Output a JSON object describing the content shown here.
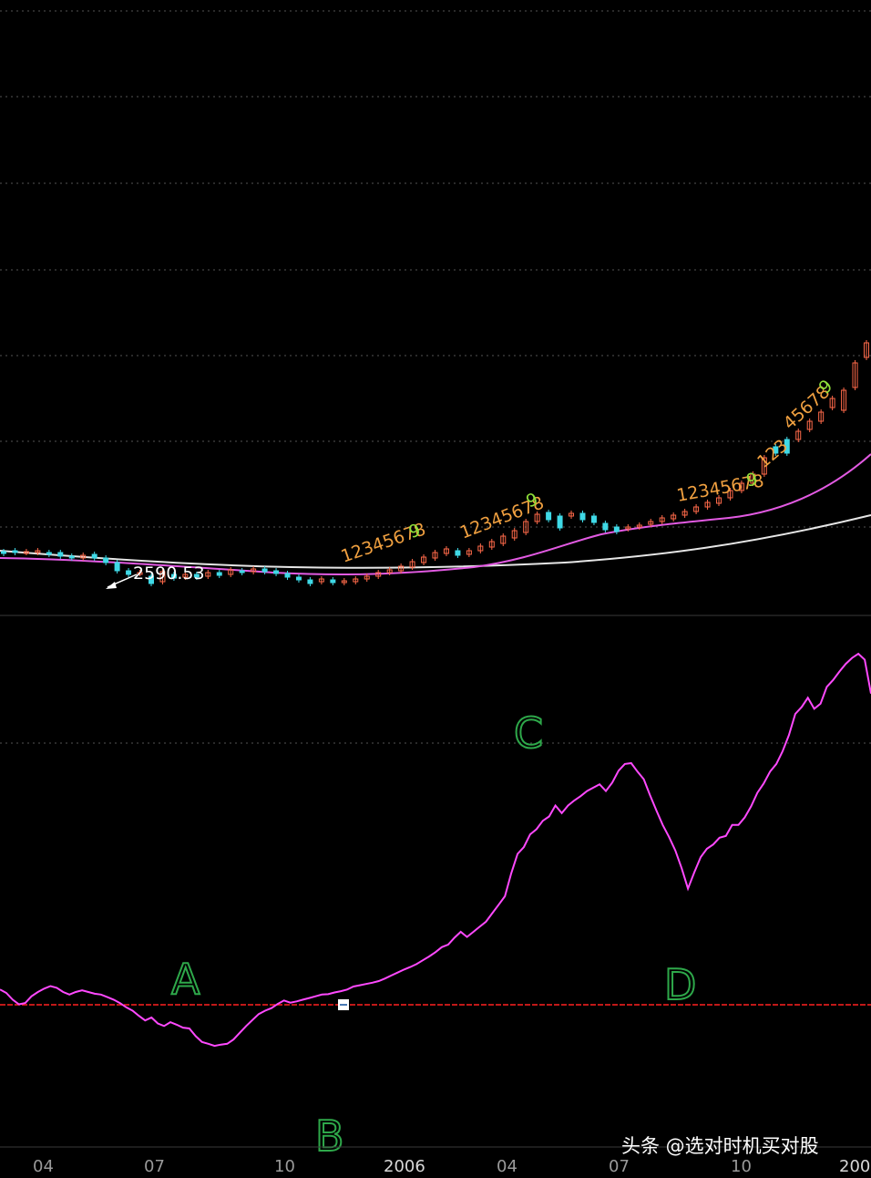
{
  "chart_data": {
    "type": "line",
    "x_ticks": [
      "04",
      "07",
      "10",
      "2006",
      "04",
      "07",
      "10",
      "200"
    ],
    "price_panel": {
      "annotation": "2590.53",
      "candles": [
        {
          "t": 0,
          "o": 605,
          "c": 607,
          "up": false
        },
        {
          "t": 1,
          "o": 604,
          "c": 606,
          "up": false
        },
        {
          "t": 2,
          "o": 606,
          "c": 605,
          "up": true
        },
        {
          "t": 3,
          "o": 604,
          "c": 606,
          "up": true
        },
        {
          "t": 4,
          "o": 606,
          "c": 608,
          "up": false
        },
        {
          "t": 5,
          "o": 606,
          "c": 610,
          "up": false
        },
        {
          "t": 6,
          "o": 610,
          "c": 612,
          "up": false
        },
        {
          "t": 7,
          "o": 612,
          "c": 609,
          "up": true
        },
        {
          "t": 8,
          "o": 608,
          "c": 612,
          "up": false
        },
        {
          "t": 9,
          "o": 612,
          "c": 617,
          "up": false
        },
        {
          "t": 10,
          "o": 617,
          "c": 626,
          "up": false
        },
        {
          "t": 11,
          "o": 626,
          "c": 630,
          "up": false
        },
        {
          "t": 12,
          "o": 629,
          "c": 628,
          "up": true
        },
        {
          "t": 13,
          "o": 632,
          "c": 640,
          "up": false
        },
        {
          "t": 14,
          "o": 638,
          "c": 627,
          "up": true
        },
        {
          "t": 15,
          "o": 630,
          "c": 634,
          "up": false
        },
        {
          "t": 16,
          "o": 633,
          "c": 630,
          "up": true
        },
        {
          "t": 17,
          "o": 630,
          "c": 633,
          "up": false
        },
        {
          "t": 18,
          "o": 632,
          "c": 628,
          "up": true
        },
        {
          "t": 19,
          "o": 628,
          "c": 631,
          "up": false
        },
        {
          "t": 20,
          "o": 630,
          "c": 625,
          "up": true
        },
        {
          "t": 21,
          "o": 626,
          "c": 628,
          "up": false
        },
        {
          "t": 22,
          "o": 627,
          "c": 624,
          "up": true
        },
        {
          "t": 23,
          "o": 624,
          "c": 627,
          "up": false
        },
        {
          "t": 24,
          "o": 626,
          "c": 629,
          "up": false
        },
        {
          "t": 25,
          "o": 629,
          "c": 633,
          "up": false
        },
        {
          "t": 26,
          "o": 633,
          "c": 636,
          "up": false
        },
        {
          "t": 27,
          "o": 636,
          "c": 640,
          "up": false
        },
        {
          "t": 28,
          "o": 638,
          "c": 635,
          "up": true
        },
        {
          "t": 29,
          "o": 636,
          "c": 639,
          "up": false
        },
        {
          "t": 30,
          "o": 639,
          "c": 637,
          "up": true
        },
        {
          "t": 31,
          "o": 638,
          "c": 635,
          "up": true
        },
        {
          "t": 32,
          "o": 635,
          "c": 632,
          "up": true
        },
        {
          "t": 33,
          "o": 632,
          "c": 628,
          "up": true
        },
        {
          "t": 34,
          "o": 628,
          "c": 625,
          "up": true
        },
        {
          "t": 35,
          "o": 626,
          "c": 621,
          "up": true
        },
        {
          "t": 36,
          "o": 622,
          "c": 616,
          "up": true
        },
        {
          "t": 37,
          "o": 617,
          "c": 611,
          "up": true
        },
        {
          "t": 38,
          "o": 612,
          "c": 606,
          "up": true
        },
        {
          "t": 39,
          "o": 607,
          "c": 602,
          "up": true
        },
        {
          "t": 40,
          "o": 604,
          "c": 609,
          "up": false
        },
        {
          "t": 41,
          "o": 608,
          "c": 604,
          "up": true
        },
        {
          "t": 42,
          "o": 604,
          "c": 599,
          "up": true
        },
        {
          "t": 43,
          "o": 600,
          "c": 594,
          "up": true
        },
        {
          "t": 44,
          "o": 596,
          "c": 588,
          "up": true
        },
        {
          "t": 45,
          "o": 590,
          "c": 582,
          "up": true
        },
        {
          "t": 46,
          "o": 584,
          "c": 572,
          "up": true
        },
        {
          "t": 47,
          "o": 572,
          "c": 564,
          "up": true
        },
        {
          "t": 48,
          "o": 562,
          "c": 570,
          "up": false
        },
        {
          "t": 49,
          "o": 566,
          "c": 579,
          "up": false
        },
        {
          "t": 50,
          "o": 566,
          "c": 563,
          "up": true
        },
        {
          "t": 51,
          "o": 563,
          "c": 570,
          "up": false
        },
        {
          "t": 52,
          "o": 566,
          "c": 573,
          "up": false
        },
        {
          "t": 53,
          "o": 574,
          "c": 581,
          "up": false
        },
        {
          "t": 54,
          "o": 578,
          "c": 583,
          "up": false
        },
        {
          "t": 55,
          "o": 578,
          "c": 580,
          "up": true
        },
        {
          "t": 56,
          "o": 578,
          "c": 576,
          "up": true
        },
        {
          "t": 57,
          "o": 575,
          "c": 572,
          "up": true
        },
        {
          "t": 58,
          "o": 572,
          "c": 568,
          "up": true
        },
        {
          "t": 59,
          "o": 569,
          "c": 565,
          "up": true
        },
        {
          "t": 60,
          "o": 565,
          "c": 561,
          "up": true
        },
        {
          "t": 61,
          "o": 561,
          "c": 556,
          "up": true
        },
        {
          "t": 62,
          "o": 556,
          "c": 551,
          "up": true
        },
        {
          "t": 63,
          "o": 552,
          "c": 546,
          "up": true
        },
        {
          "t": 64,
          "o": 546,
          "c": 538,
          "up": true
        },
        {
          "t": 65,
          "o": 538,
          "c": 530,
          "up": true
        },
        {
          "t": 66,
          "o": 530,
          "c": 520,
          "up": true
        },
        {
          "t": 67,
          "o": 520,
          "c": 502,
          "up": true
        },
        {
          "t": 68,
          "o": 497,
          "c": 490,
          "up": false
        },
        {
          "t": 69,
          "o": 482,
          "c": 497,
          "up": false
        },
        {
          "t": 70,
          "o": 482,
          "c": 473,
          "up": true
        },
        {
          "t": 71,
          "o": 471,
          "c": 462,
          "up": true
        },
        {
          "t": 72,
          "o": 462,
          "c": 452,
          "up": true
        },
        {
          "t": 73,
          "o": 447,
          "c": 437,
          "up": true
        },
        {
          "t": 74,
          "o": 450,
          "c": 428,
          "up": true
        },
        {
          "t": 75,
          "o": 425,
          "c": 398,
          "up": true
        },
        {
          "t": 76,
          "o": 392,
          "c": 376,
          "up": true
        }
      ]
    },
    "series": [
      {
        "name": "",
        "color": "#ff49ff",
        "y": [
          1.8,
          1.4,
          0.6,
          0.05,
          0.2,
          1.0,
          1.5,
          1.9,
          2.2,
          2.0,
          1.5,
          1.2,
          1.5,
          1.7,
          1.5,
          1.3,
          1.2,
          0.9,
          0.6,
          0.2,
          -0.3,
          -0.7,
          -1.3,
          -1.85,
          -1.5,
          -2.2,
          -2.5,
          -2.05,
          -2.35,
          -2.7,
          -2.8,
          -3.7,
          -4.4,
          -4.6,
          -4.85,
          -4.7,
          -4.6,
          -4.1,
          -3.3,
          -2.5,
          -1.8,
          -1.1,
          -0.7,
          -0.4,
          0.1,
          0.5,
          0.25,
          0.4,
          0.6,
          0.8,
          1.0,
          1.2,
          1.25,
          1.45,
          1.6,
          1.8,
          2.15,
          2.3,
          2.45,
          2.6,
          2.8,
          3.1,
          3.45,
          3.8,
          4.15,
          4.45,
          4.8,
          5.25,
          5.7,
          6.2,
          6.8,
          7.1,
          7.9,
          8.6,
          8.0,
          8.6,
          9.2,
          9.8,
          10.8,
          11.8,
          12.8,
          15.5,
          17.8,
          18.6,
          20.1,
          20.7,
          21.7,
          22.2,
          23.5,
          22.6,
          23.5,
          24.1,
          24.6,
          25.2,
          25.6,
          26.0,
          25.2,
          26.2,
          27.6,
          28.4,
          28.5,
          27.5,
          26.6,
          24.7,
          22.9,
          21.2,
          19.8,
          18.2,
          16.1,
          13.7,
          15.6,
          17.4,
          18.4,
          18.9,
          19.7,
          19.9,
          21.2,
          21.2,
          22.1,
          23.4,
          25.0,
          26.1,
          27.5,
          28.4,
          29.9,
          31.8,
          34.3,
          35.1,
          36.2,
          34.9,
          35.5,
          37.5,
          38.3,
          39.3,
          40.2,
          40.9,
          41.4,
          40.7,
          36.7
        ]
      },
      {
        "name": "",
        "color": "#ff2020",
        "y": "constant-zero"
      }
    ],
    "seq_counts": [
      {
        "text": "12345678",
        "last": "9"
      },
      {
        "text": "12345678",
        "last": "9"
      },
      {
        "text": "12345678",
        "last": "9"
      },
      {
        "text": "123",
        "last": ""
      },
      {
        "text": "45678",
        "last": "9"
      }
    ],
    "handwritten_marks": [
      "A",
      "B",
      "C",
      "D"
    ]
  },
  "watermark": {
    "text": "头条 @选对时机买对股"
  }
}
